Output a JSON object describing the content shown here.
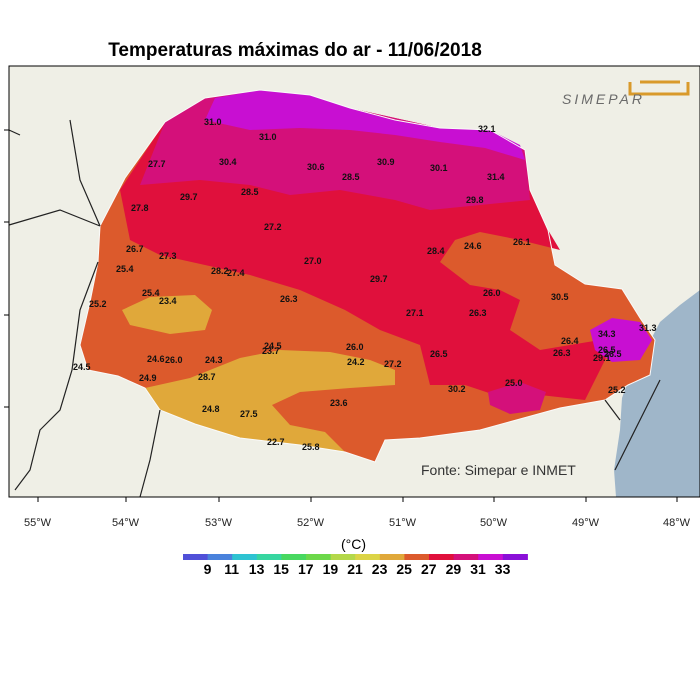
{
  "title": "Temperaturas máximas do ar - 11/06/2018",
  "source": "Fonte: Simepar e INMET",
  "logo": "SIMEPAR",
  "legend": {
    "unit": "(°C)",
    "ticks": [
      "9",
      "11",
      "13",
      "15",
      "17",
      "19",
      "21",
      "23",
      "25",
      "27",
      "29",
      "31",
      "33"
    ],
    "colors": [
      "#5050d8",
      "#4a82dc",
      "#2ec3d2",
      "#37d6a0",
      "#48d860",
      "#6cd84a",
      "#b4d84a",
      "#dcd446",
      "#e0a83a",
      "#dc5a2c",
      "#e0103c",
      "#d4107a",
      "#c80fd2",
      "#8a10d8"
    ]
  },
  "axes": {
    "longitudes": [
      "55°W",
      "54°W",
      "53°W",
      "52°W",
      "51°W",
      "50°W",
      "49°W",
      "48°W"
    ]
  },
  "stations": [
    {
      "v": "31.0"
    },
    {
      "v": "31.0"
    },
    {
      "v": "32.1"
    },
    {
      "v": "27.7"
    },
    {
      "v": "30.4"
    },
    {
      "v": "30.6"
    },
    {
      "v": "30.9"
    },
    {
      "v": "30.1"
    },
    {
      "v": "28.5"
    },
    {
      "v": "31.4"
    },
    {
      "v": "29.7"
    },
    {
      "v": "28.5"
    },
    {
      "v": "29.8"
    },
    {
      "v": "27.8"
    },
    {
      "v": "27.2"
    },
    {
      "v": "26.7"
    },
    {
      "v": "28.4"
    },
    {
      "v": "24.6"
    },
    {
      "v": "26.1"
    },
    {
      "v": "27.3"
    },
    {
      "v": "25.4"
    },
    {
      "v": "28.2"
    },
    {
      "v": "27.4"
    },
    {
      "v": "27.0"
    },
    {
      "v": "29.7"
    },
    {
      "v": "25.4"
    },
    {
      "v": "23.4"
    },
    {
      "v": "26.3"
    },
    {
      "v": "26.0"
    },
    {
      "v": "30.5"
    },
    {
      "v": "25.2"
    },
    {
      "v": "27.1"
    },
    {
      "v": "26.3"
    },
    {
      "v": "34.3"
    },
    {
      "v": "31.3"
    },
    {
      "v": "26.4"
    },
    {
      "v": "24.5"
    },
    {
      "v": "26.0"
    },
    {
      "v": "23.7"
    },
    {
      "v": "26.3"
    },
    {
      "v": "26.5"
    },
    {
      "v": "29.1"
    },
    {
      "v": "26.5"
    },
    {
      "v": "24.6"
    },
    {
      "v": "26.0"
    },
    {
      "v": "24.3"
    },
    {
      "v": "24.2"
    },
    {
      "v": "27.2"
    },
    {
      "v": "26.5"
    },
    {
      "v": "24.5"
    },
    {
      "v": "24.9"
    },
    {
      "v": "28.7"
    },
    {
      "v": "30.2"
    },
    {
      "v": "25.0"
    },
    {
      "v": "25.2"
    },
    {
      "v": "24.8"
    },
    {
      "v": "27.5"
    },
    {
      "v": "23.6"
    },
    {
      "v": "22.7"
    },
    {
      "v": "25.8"
    }
  ]
}
